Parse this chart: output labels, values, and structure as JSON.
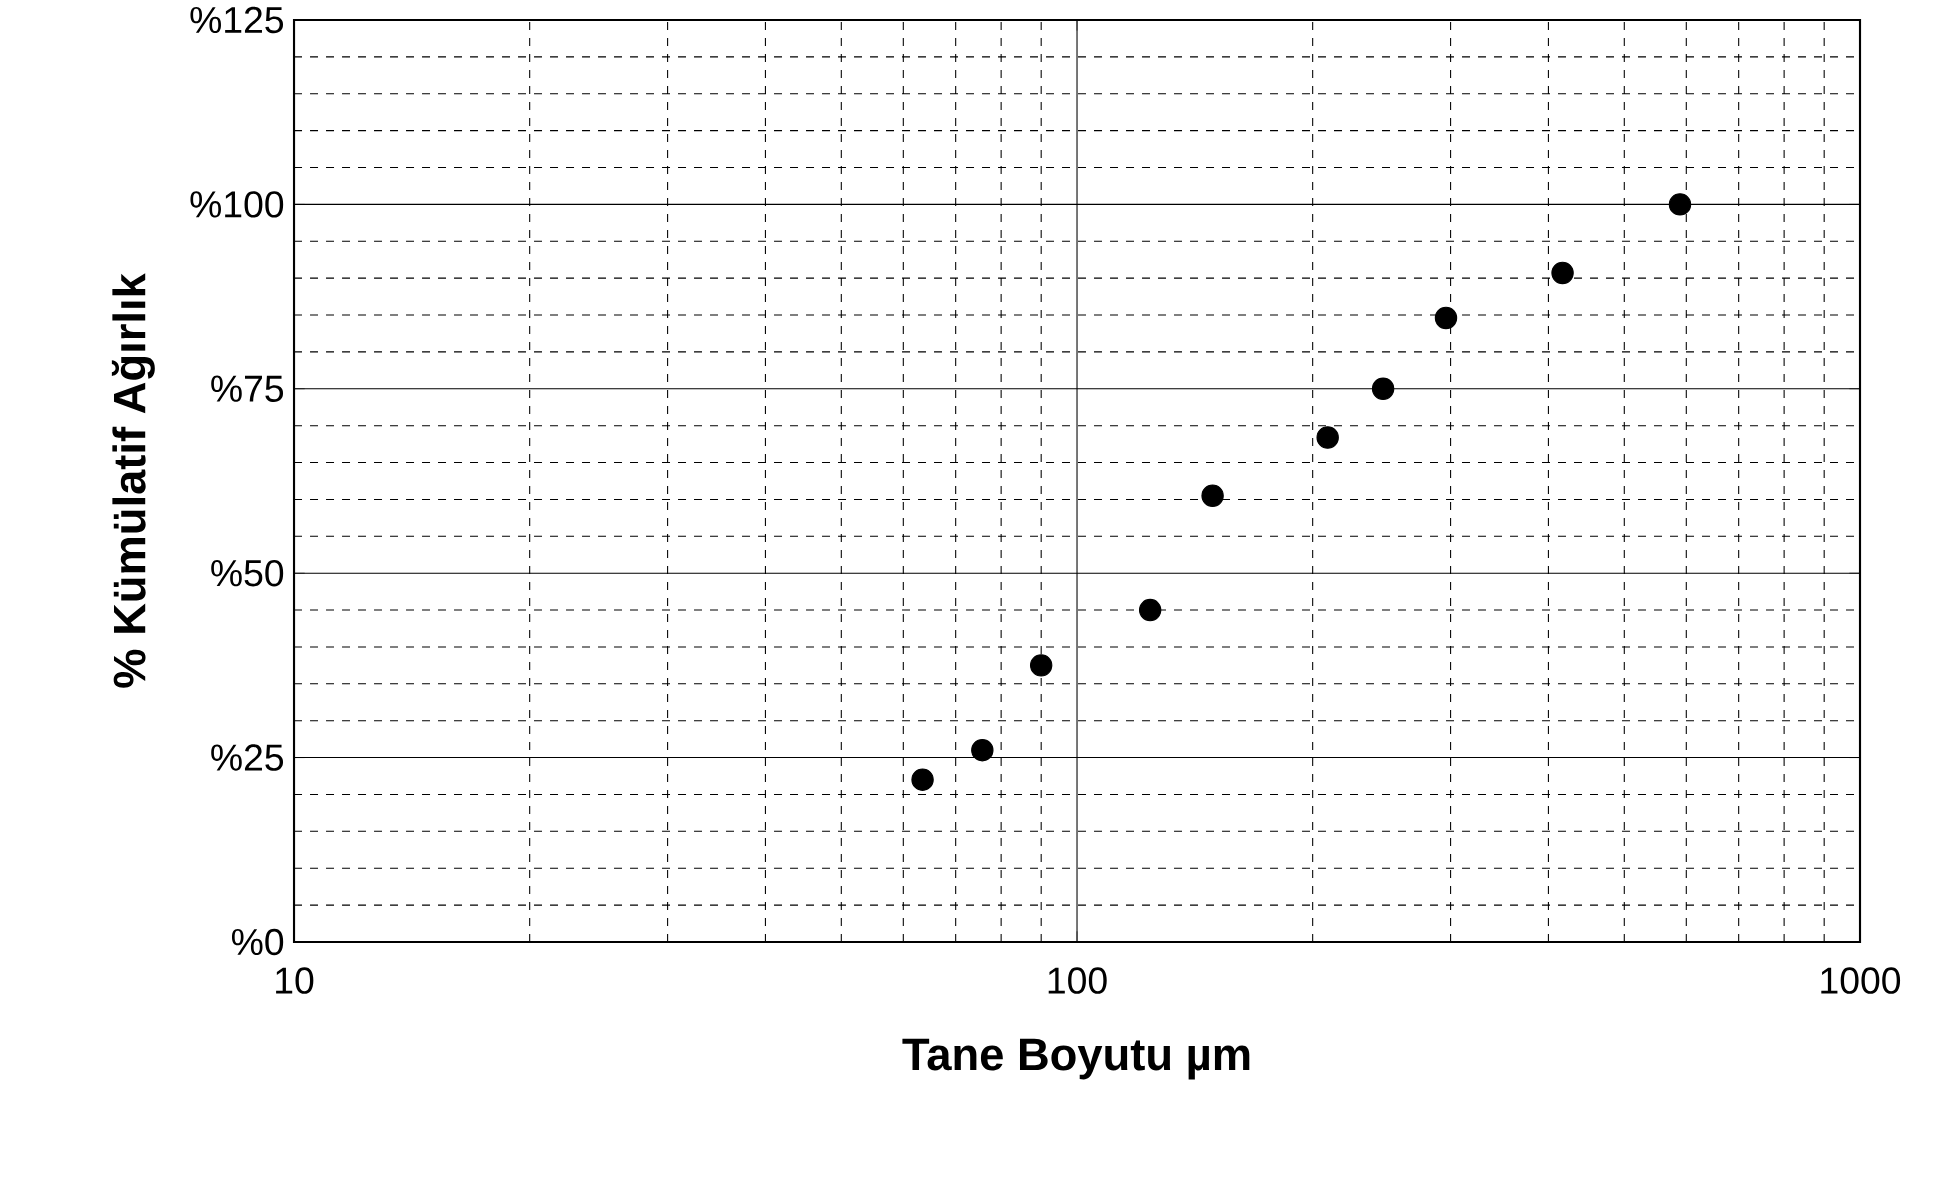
{
  "chart_data": {
    "type": "scatter",
    "xlabel": "Tane Boyutu µm",
    "ylabel": "% Kümülatif Ağırlık",
    "x": [
      63.5,
      75.7,
      90,
      124,
      149,
      209,
      246,
      296,
      417,
      589
    ],
    "series": [
      {
        "color": "#000000",
        "values": [
          22,
          26,
          37.5,
          45,
          60.5,
          68.4,
          75,
          84.6,
          90.7,
          100
        ]
      }
    ],
    "log": "x",
    "xlim": [
      10,
      1000
    ],
    "xticks": [
      10,
      100,
      1000
    ],
    "ylim": [
      0,
      125
    ],
    "yticks": [
      {
        "value": 0,
        "label": "%0"
      },
      {
        "value": 25,
        "label": "%25"
      },
      {
        "value": 50,
        "label": "%50"
      },
      {
        "value": 75,
        "label": "%75"
      },
      {
        "value": 100,
        "label": "%100"
      },
      {
        "value": 125,
        "label": "%125"
      }
    ],
    "grid": true,
    "marker": "circle",
    "legend": false
  }
}
